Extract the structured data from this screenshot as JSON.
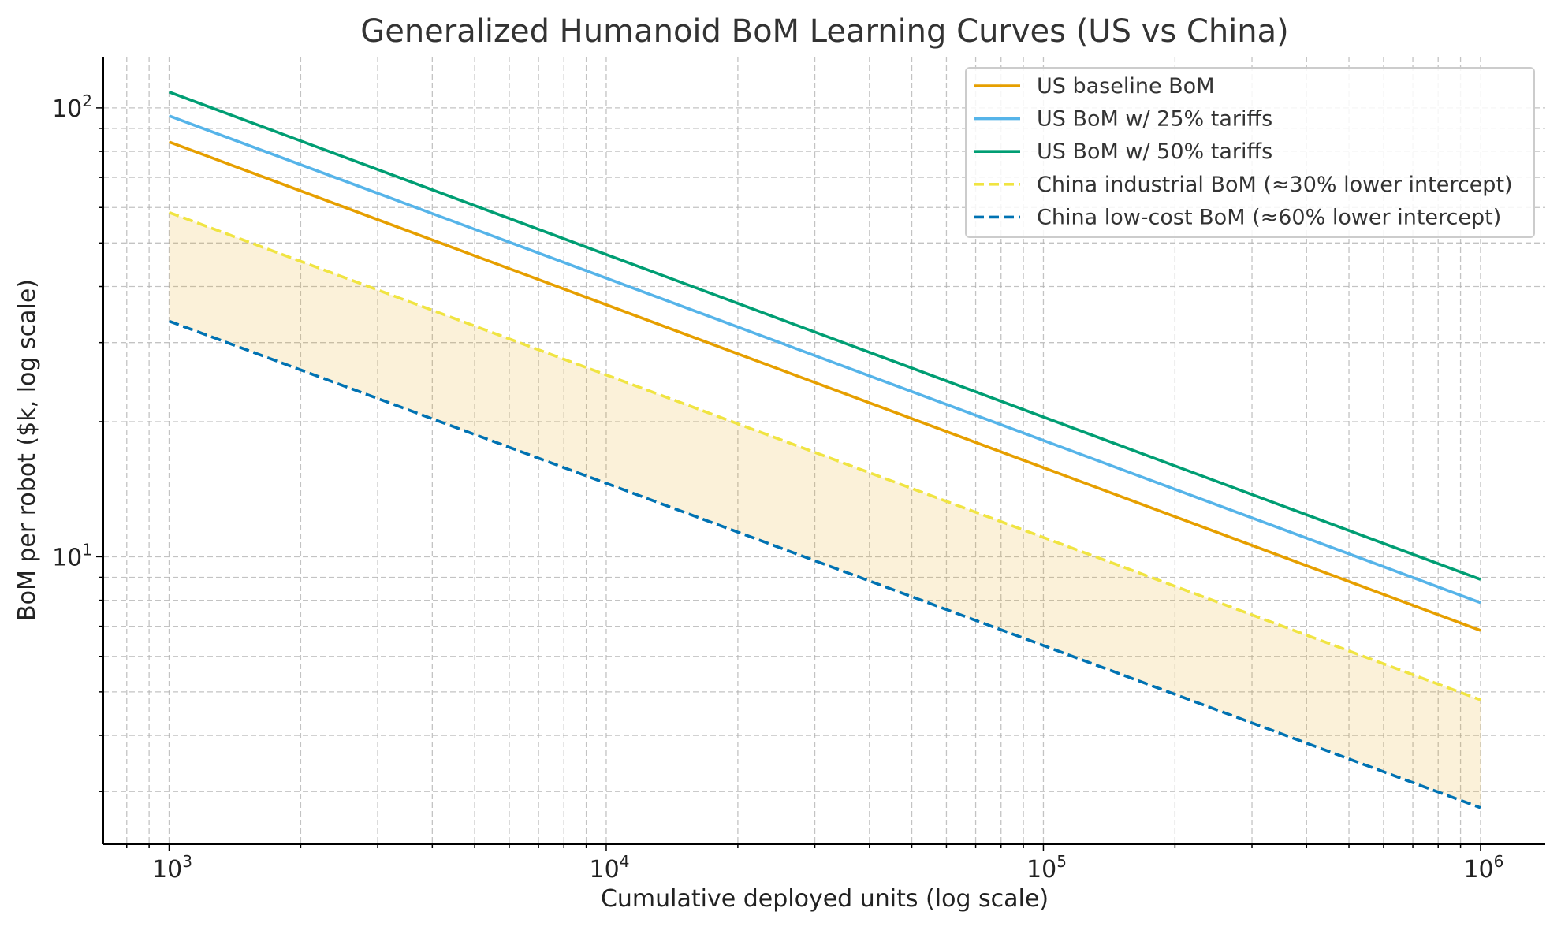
{
  "chart_data": {
    "type": "line",
    "title": "Generalized Humanoid BoM Learning Curves (US vs China)",
    "xlabel": "Cumulative deployed units (log scale)",
    "ylabel": "BoM per robot ($k, log scale)",
    "xscale": "log",
    "yscale": "log",
    "xlim": [
      707,
      1406000
    ],
    "ylim": [
      2.29,
      130
    ],
    "grid": true,
    "grid_minor": true,
    "legend_placement": "top-right",
    "x_ticks": [
      {
        "value": 1000,
        "base": "10",
        "exp": "3"
      },
      {
        "value": 10000,
        "base": "10",
        "exp": "4"
      },
      {
        "value": 100000,
        "base": "10",
        "exp": "5"
      },
      {
        "value": 1000000,
        "base": "10",
        "exp": "6"
      }
    ],
    "y_ticks": [
      {
        "value": 10,
        "base": "10",
        "exp": "1"
      },
      {
        "value": 100,
        "base": "10",
        "exp": "2"
      }
    ],
    "x": [
      1000,
      1000000
    ],
    "series": [
      {
        "name": "US baseline BoM",
        "values": [
          84,
          6.85
        ],
        "color": "#E69F00",
        "style": "solid"
      },
      {
        "name": "US BoM w/ 25% tariffs",
        "values": [
          96,
          7.9
        ],
        "color": "#56B4E9",
        "style": "solid"
      },
      {
        "name": "US BoM w/ 50% tariffs",
        "values": [
          108.5,
          8.9
        ],
        "color": "#009E73",
        "style": "solid"
      },
      {
        "name": "China industrial BoM (≈30% lower intercept)",
        "values": [
          58.5,
          4.8
        ],
        "color": "#F0E442",
        "style": "dashed"
      },
      {
        "name": "China low-cost BoM (≈60% lower intercept)",
        "values": [
          33.5,
          2.76
        ],
        "color": "#0072B2",
        "style": "dashed"
      }
    ],
    "shaded_band": {
      "between": [
        "China low-cost BoM (≈60% lower intercept)",
        "China industrial BoM (≈30% lower intercept)"
      ],
      "color": "#E69F00",
      "opacity": 0.15
    }
  }
}
